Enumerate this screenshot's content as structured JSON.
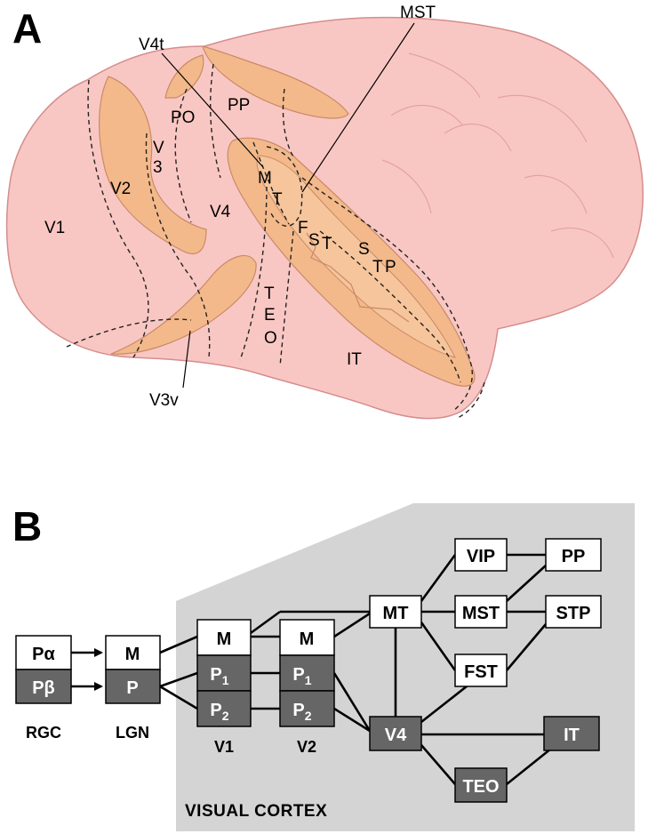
{
  "panel_a": {
    "label": "A",
    "areas": {
      "v1": "V1",
      "v2": "V2",
      "v3a": "V",
      "v3b": "3",
      "v4": "V4",
      "po": "PO",
      "pp": "PP",
      "mt_m": "M",
      "mt_t": "T",
      "fst_f": "F",
      "fst_s": "S",
      "fst_t": "T",
      "stp_s": "S",
      "stp_t": "T",
      "stp_p": "P",
      "teo_t": "T",
      "teo_e": "E",
      "teo_o": "O",
      "it": "IT"
    },
    "callouts": {
      "v4t": "V4t",
      "mst": "MST",
      "v3v": "V3v"
    }
  },
  "panel_b": {
    "label": "B",
    "region_label": "VISUAL CORTEX",
    "rgc": {
      "top": "Pα",
      "bottom": "Pβ",
      "caption": "RGC"
    },
    "lgn": {
      "top": "M",
      "bottom": "P",
      "caption": "LGN"
    },
    "v1": {
      "m": "M",
      "p1": "P",
      "p1_sub": "1",
      "p2": "P",
      "p2_sub": "2",
      "caption": "V1"
    },
    "v2": {
      "m": "M",
      "p1": "P",
      "p1_sub": "1",
      "p2": "P",
      "p2_sub": "2",
      "caption": "V2"
    },
    "nodes": {
      "mt": "MT",
      "mst": "MST",
      "vip": "VIP",
      "pp": "PP",
      "stp": "STP",
      "fst": "FST",
      "v4": "V4",
      "it": "IT",
      "teo": "TEO"
    },
    "colors": {
      "light_box": "#ffffff",
      "dark_box": "#666666",
      "region": "#d4d4d4",
      "brain": "#f9c7c3",
      "sulcus": "#f3b98a"
    }
  }
}
